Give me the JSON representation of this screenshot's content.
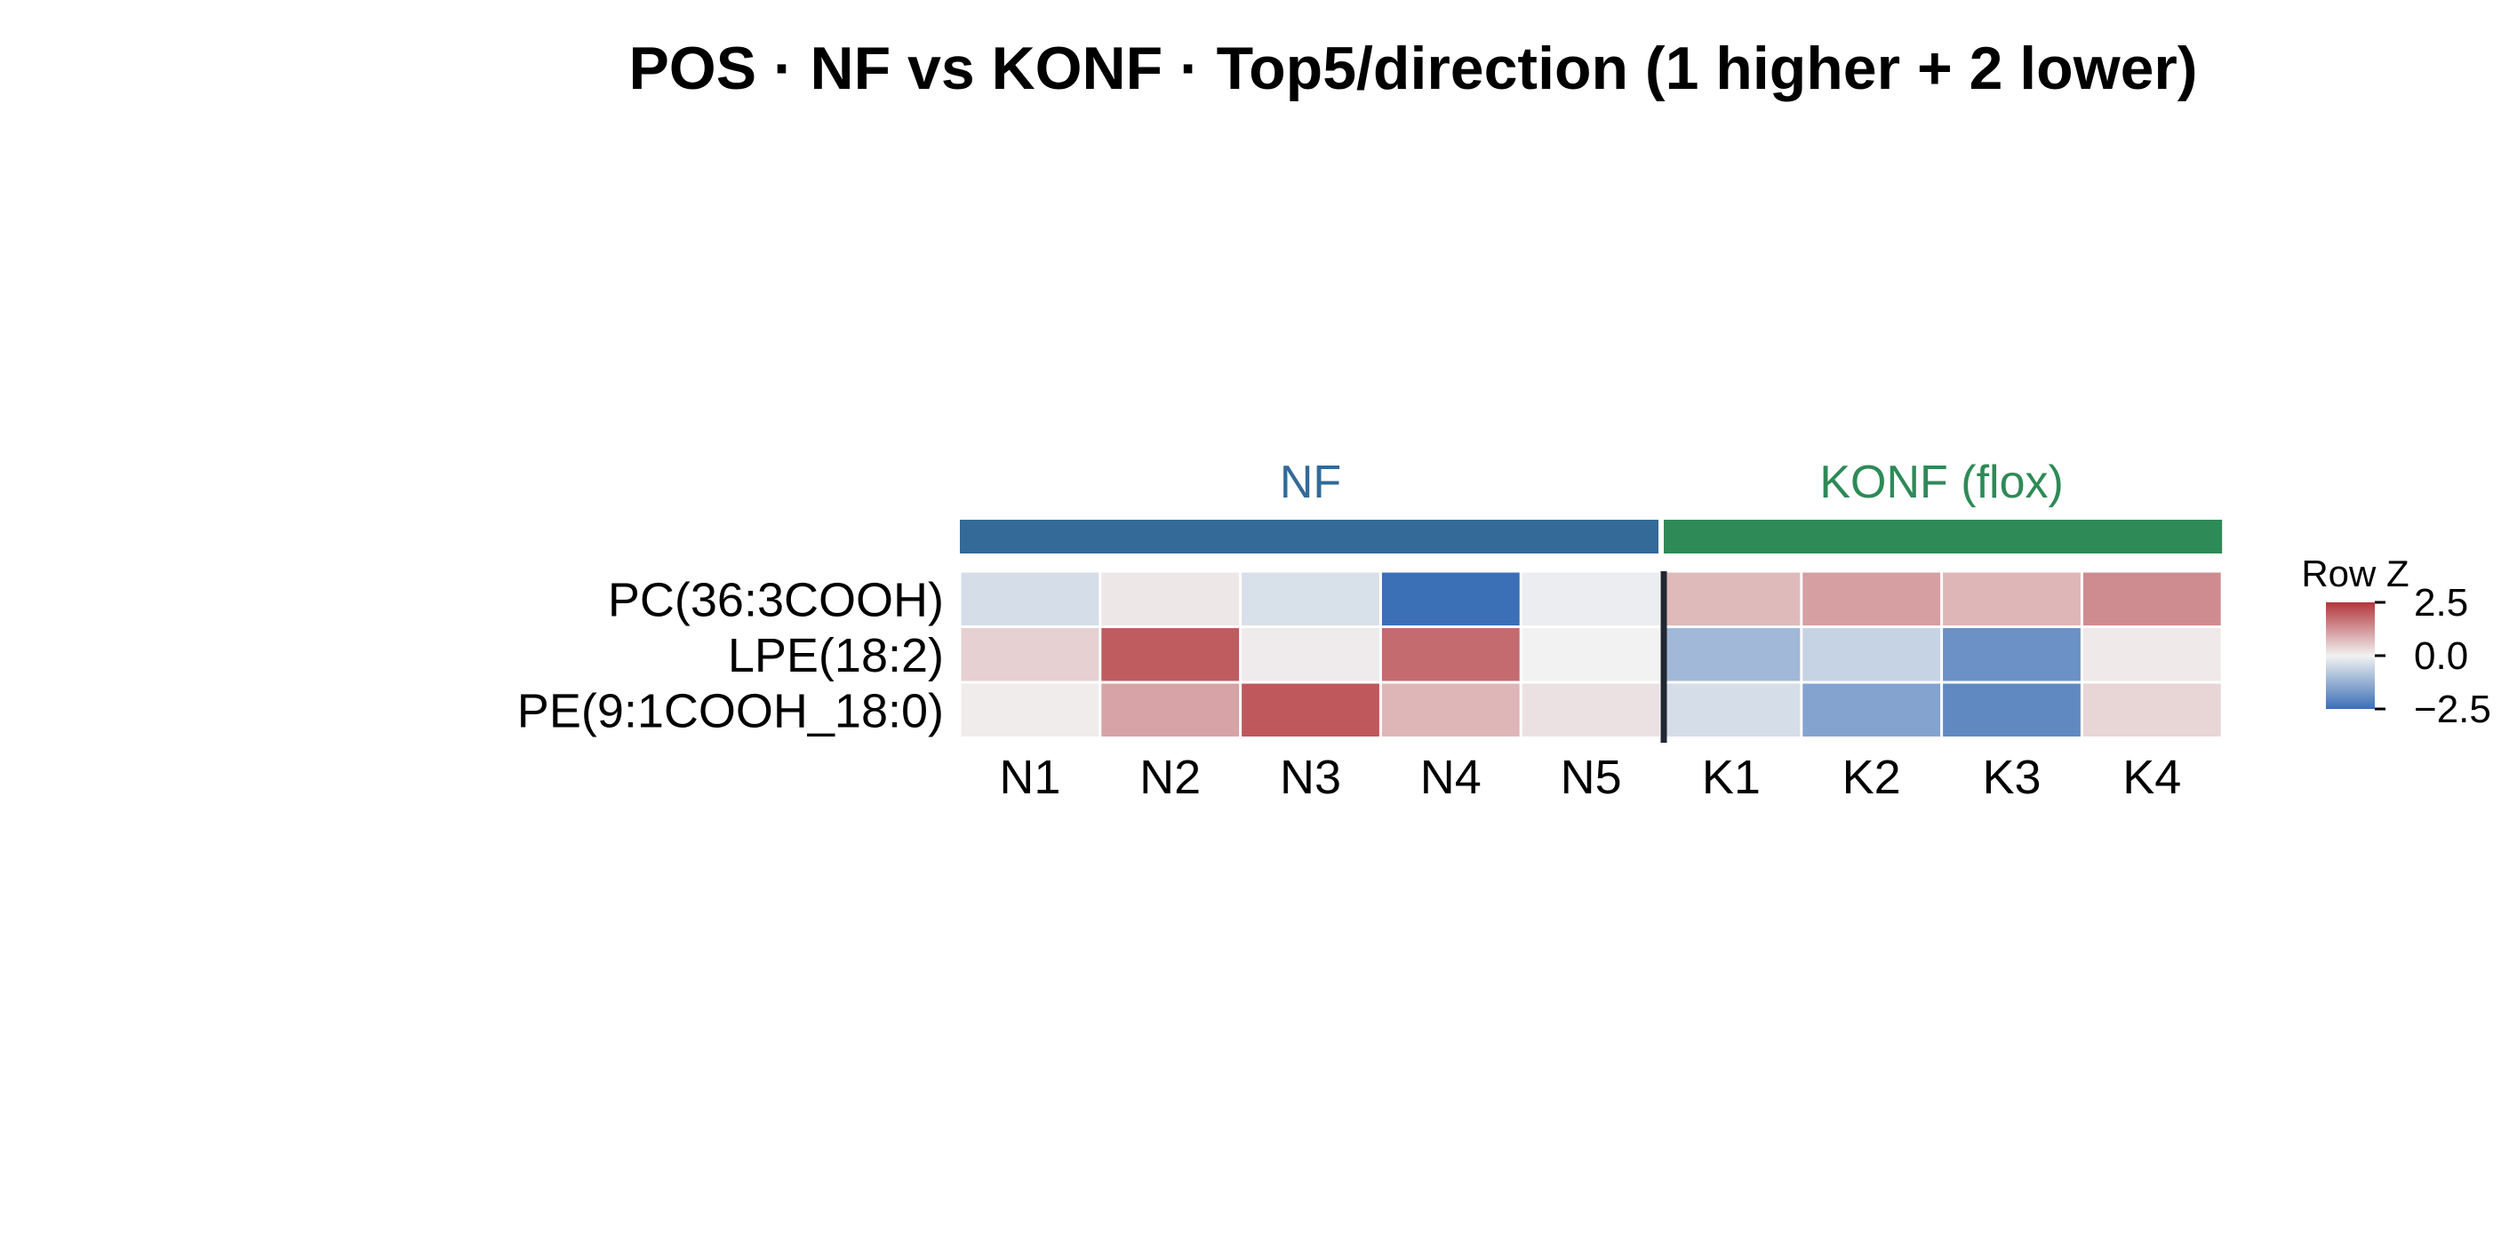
{
  "chart_data": {
    "type": "heatmap",
    "title": "POS · NF vs KONF · Top5/direction (1 higher + 2 lower)",
    "groups": [
      {
        "name": "NF",
        "color": "#336a97",
        "columns": [
          "N1",
          "N2",
          "N3",
          "N4",
          "N5"
        ]
      },
      {
        "name": "KONF (flox)",
        "color": "#2e8a57",
        "columns": [
          "K1",
          "K2",
          "K3",
          "K4"
        ]
      }
    ],
    "columns": [
      "N1",
      "N2",
      "N3",
      "N4",
      "N5",
      "K1",
      "K2",
      "K3",
      "K4"
    ],
    "rows": [
      "PC(36:3COOH)",
      "LPE(18:2)",
      "PE(9:1COOH_18:0)"
    ],
    "values": [
      [
        -0.4,
        0.15,
        -0.35,
        -2.5,
        -0.1,
        0.75,
        1.1,
        0.8,
        1.35
      ],
      [
        0.45,
        2.0,
        0.1,
        1.8,
        0.0,
        -1.1,
        -0.6,
        -1.85,
        0.12
      ],
      [
        0.08,
        1.05,
        2.05,
        0.8,
        0.22,
        -0.4,
        -1.5,
        -2.0,
        0.38
      ]
    ],
    "colorscale": {
      "low": "#3b6fb6",
      "mid": "#f2f2f2",
      "high": "#b2363c",
      "vmin": -2.5,
      "vmax": 2.5
    },
    "legend": {
      "title": "Row Z",
      "ticks": [
        "2.5",
        "0.0",
        "−2.5"
      ],
      "position": "right"
    }
  }
}
